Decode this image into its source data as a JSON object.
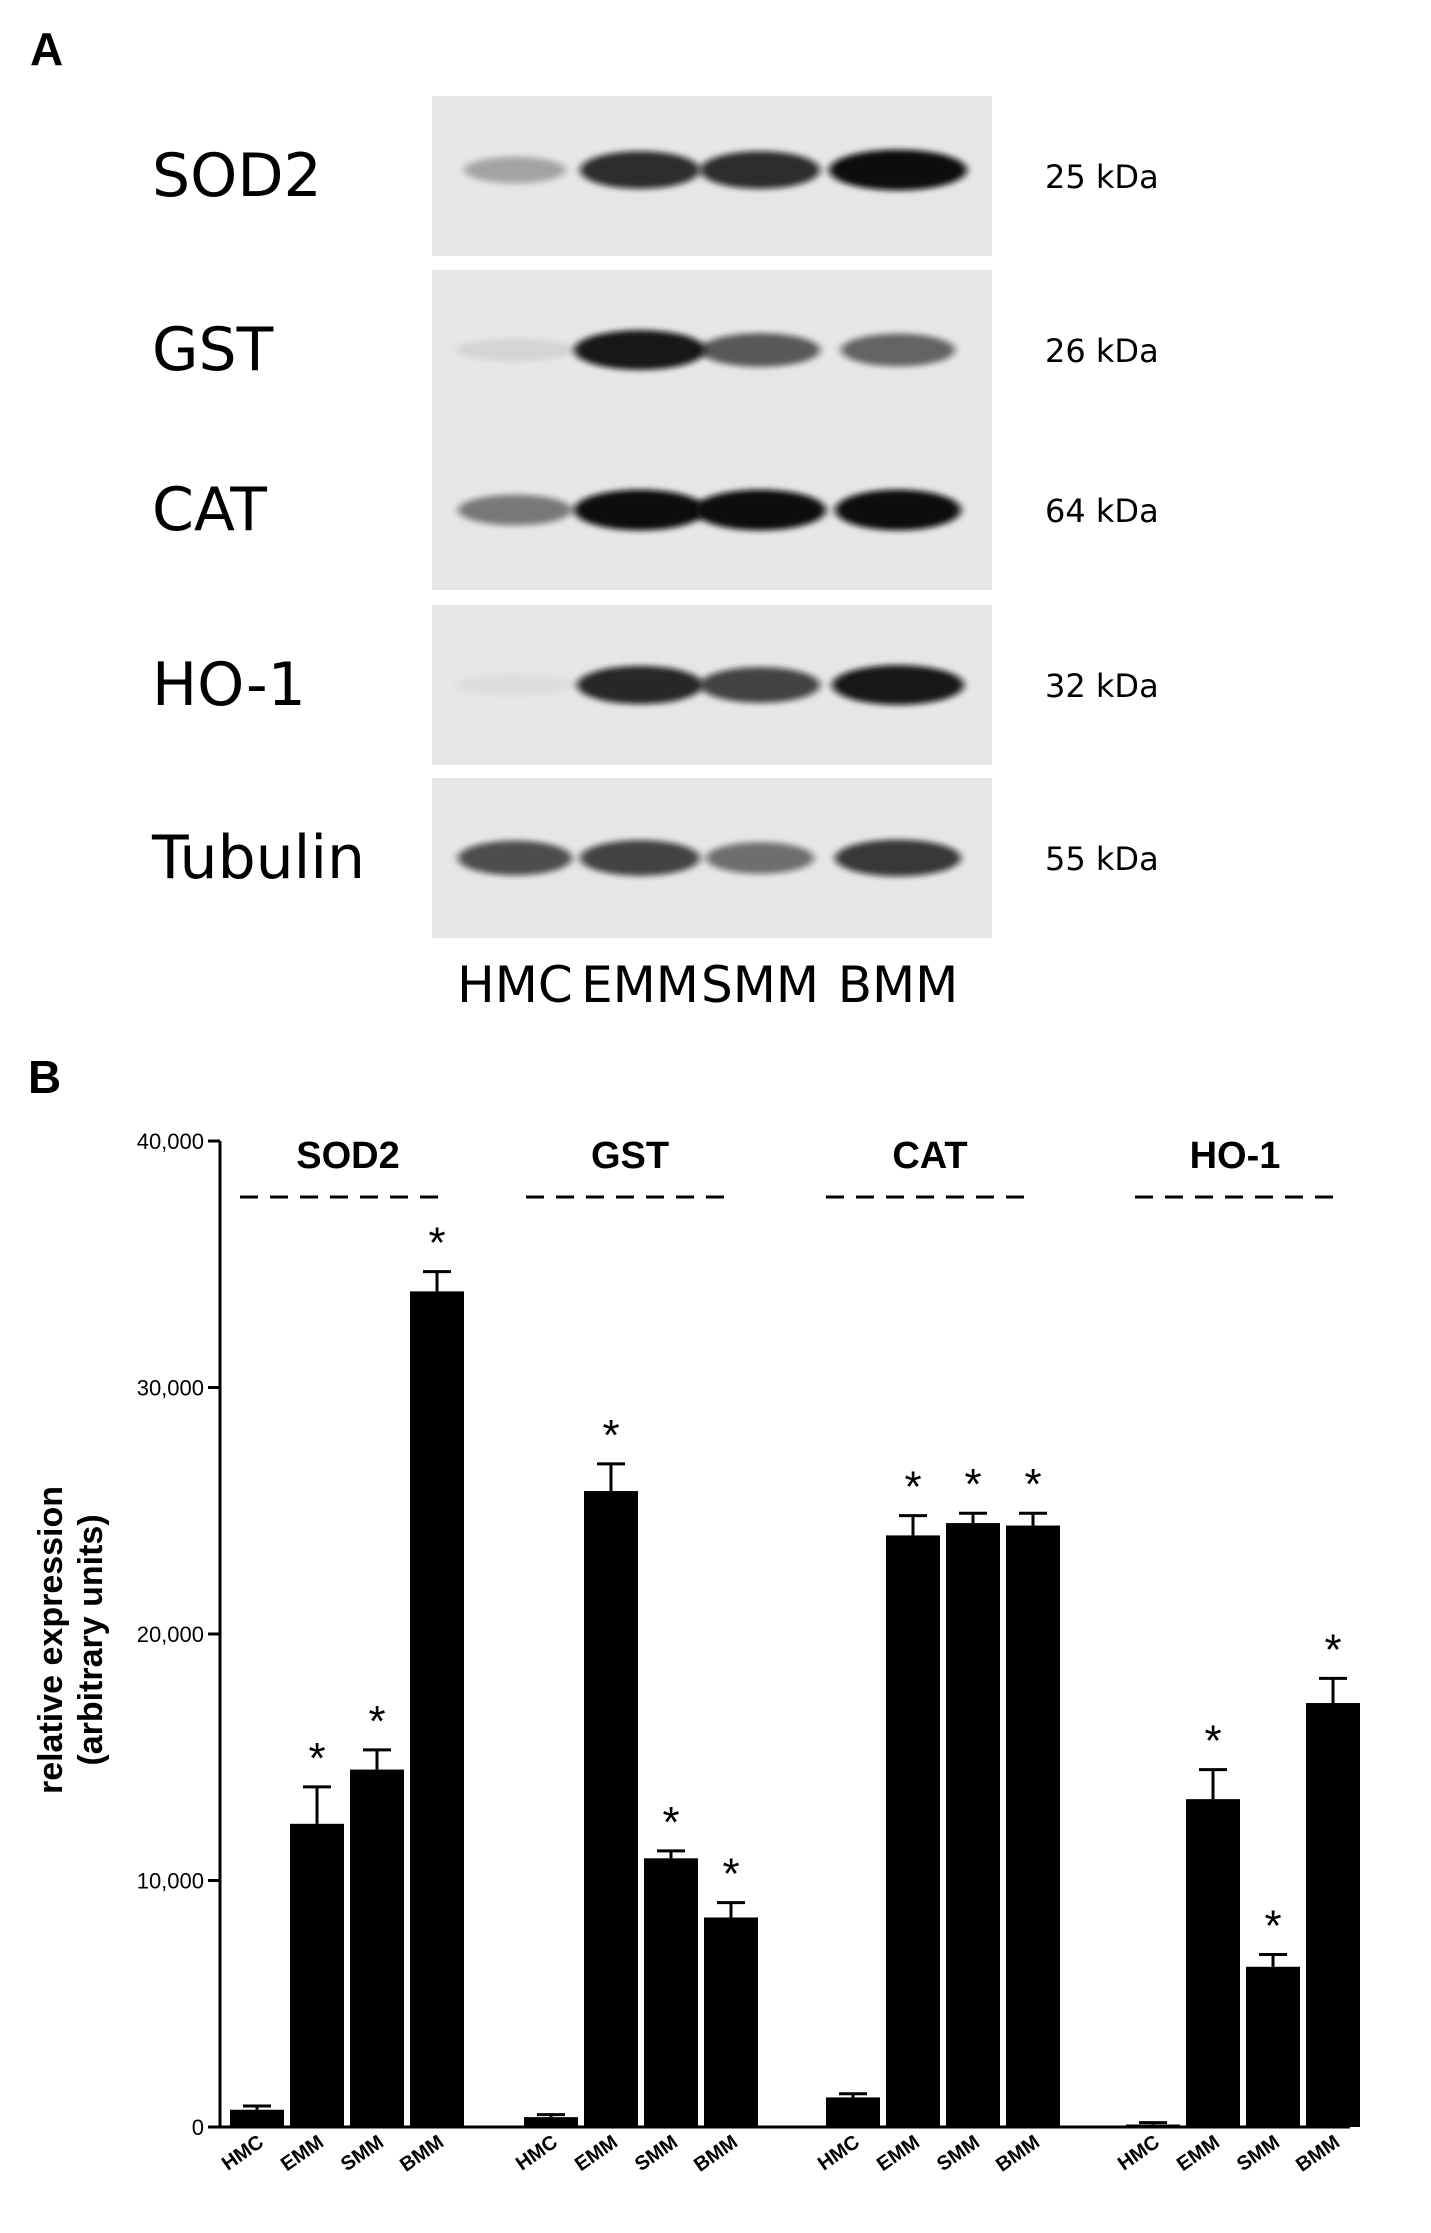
{
  "panel_a": {
    "letter": "A",
    "blots": [
      {
        "protein": "SOD2",
        "kda": "25 kDa",
        "intensities": [
          0.3,
          0.85,
          0.85,
          1.0
        ],
        "widths": [
          0.85,
          1.0,
          1.0,
          1.15
        ]
      },
      {
        "protein": "GST",
        "kda": "26 kDa",
        "intensities": [
          0.08,
          0.95,
          0.65,
          0.6
        ],
        "widths": [
          1.0,
          1.1,
          1.0,
          0.95
        ]
      },
      {
        "protein": "CAT",
        "kda": "64 kDa",
        "intensities": [
          0.5,
          1.0,
          1.0,
          1.0
        ],
        "widths": [
          0.95,
          1.1,
          1.1,
          1.05
        ]
      },
      {
        "protein": "HO-1",
        "kda": "32 kDa",
        "intensities": [
          0.04,
          0.88,
          0.75,
          0.95
        ],
        "widths": [
          1.0,
          1.05,
          1.0,
          1.1
        ]
      },
      {
        "protein": "Tubulin",
        "kda": "55 kDa",
        "intensities": [
          0.7,
          0.75,
          0.55,
          0.8
        ],
        "widths": [
          0.95,
          1.0,
          0.9,
          1.05
        ]
      }
    ],
    "lanes": [
      "HMC",
      "EMM",
      "SMM",
      "BMM"
    ]
  },
  "panel_b": {
    "letter": "B"
  },
  "chart_data": {
    "type": "bar",
    "ylabel": "relative expression\n(arbitrary units)",
    "ylim": [
      0,
      40000
    ],
    "yticks": [
      0,
      10000,
      20000,
      30000,
      40000
    ],
    "ytick_labels": [
      "0",
      "10,000",
      "20,000",
      "30,000",
      "40,000"
    ],
    "groups": [
      {
        "name": "SOD2",
        "categories": [
          "HMC",
          "EMM",
          "SMM",
          "BMM"
        ],
        "values": [
          700,
          12300,
          14500,
          33900
        ],
        "errors": [
          150,
          1500,
          800,
          800
        ],
        "significant": [
          false,
          true,
          true,
          true
        ]
      },
      {
        "name": "GST",
        "categories": [
          "HMC",
          "EMM",
          "SMM",
          "BMM"
        ],
        "values": [
          400,
          25800,
          10900,
          8500
        ],
        "errors": [
          100,
          1100,
          300,
          600
        ],
        "significant": [
          false,
          true,
          true,
          true
        ]
      },
      {
        "name": "CAT",
        "categories": [
          "HMC",
          "EMM",
          "SMM",
          "BMM"
        ],
        "values": [
          1200,
          24000,
          24500,
          24400
        ],
        "errors": [
          150,
          800,
          400,
          500
        ],
        "significant": [
          false,
          true,
          true,
          true
        ]
      },
      {
        "name": "HO-1",
        "categories": [
          "HMC",
          "EMM",
          "SMM",
          "BMM"
        ],
        "values": [
          100,
          13300,
          6500,
          17200
        ],
        "errors": [
          80,
          1200,
          500,
          1000
        ],
        "significant": [
          false,
          true,
          true,
          true
        ]
      }
    ],
    "significance_marker": "*"
  },
  "colors": {
    "bar": "#000000",
    "band": "#0a0a0a",
    "blot_bg": "#e6e6e6"
  }
}
